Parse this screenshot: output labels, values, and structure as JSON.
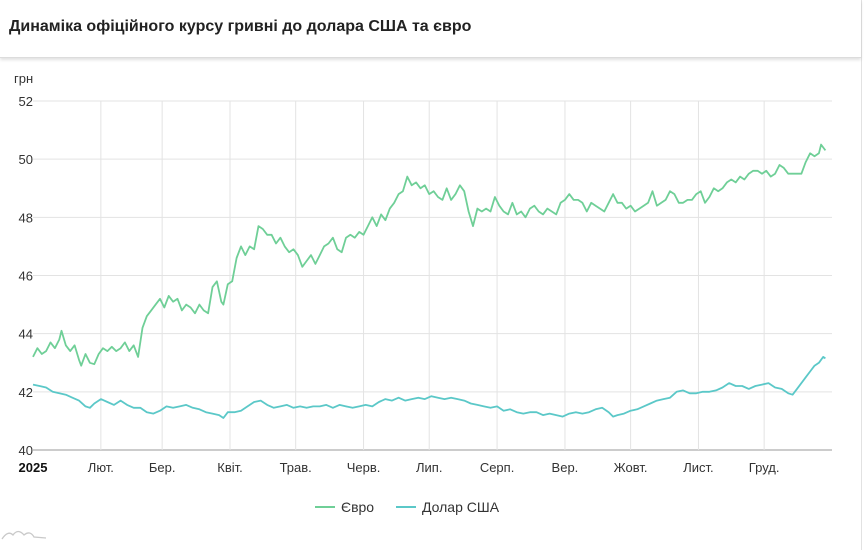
{
  "header": {
    "title": "Динаміка офіційного курсу гривні до долара США та євро"
  },
  "chart_data": {
    "type": "line",
    "ylabel": "грн",
    "ylim": [
      40,
      52
    ],
    "yticks": [
      40,
      42,
      44,
      46,
      48,
      50,
      52
    ],
    "xlim": [
      0,
      365
    ],
    "xticks": [
      {
        "label": "2025",
        "day": 0,
        "bold": true
      },
      {
        "label": "Лют.",
        "day": 31
      },
      {
        "label": "Бер.",
        "day": 59
      },
      {
        "label": "Квіт.",
        "day": 90
      },
      {
        "label": "Трав.",
        "day": 120
      },
      {
        "label": "Черв.",
        "day": 151
      },
      {
        "label": "Лип.",
        "day": 181
      },
      {
        "label": "Серп.",
        "day": 212
      },
      {
        "label": "Вер.",
        "day": 243
      },
      {
        "label": "Жовт.",
        "day": 273
      },
      {
        "label": "Лист.",
        "day": 304
      },
      {
        "label": "Груд.",
        "day": 334
      }
    ],
    "grid": true,
    "legend_position": "bottom",
    "series": [
      {
        "name": "Євро",
        "color": "#6fcf97",
        "points": [
          [
            0,
            43.2
          ],
          [
            2,
            43.5
          ],
          [
            4,
            43.3
          ],
          [
            6,
            43.4
          ],
          [
            8,
            43.7
          ],
          [
            10,
            43.5
          ],
          [
            12,
            43.8
          ],
          [
            13,
            44.1
          ],
          [
            15,
            43.6
          ],
          [
            17,
            43.4
          ],
          [
            19,
            43.6
          ],
          [
            21,
            43.1
          ],
          [
            22,
            42.9
          ],
          [
            24,
            43.3
          ],
          [
            26,
            43.0
          ],
          [
            28,
            42.95
          ],
          [
            30,
            43.3
          ],
          [
            32,
            43.5
          ],
          [
            34,
            43.4
          ],
          [
            36,
            43.55
          ],
          [
            38,
            43.4
          ],
          [
            40,
            43.5
          ],
          [
            42,
            43.7
          ],
          [
            44,
            43.4
          ],
          [
            46,
            43.6
          ],
          [
            48,
            43.2
          ],
          [
            50,
            44.2
          ],
          [
            52,
            44.6
          ],
          [
            54,
            44.8
          ],
          [
            56,
            45.0
          ],
          [
            58,
            45.2
          ],
          [
            60,
            44.9
          ],
          [
            62,
            45.3
          ],
          [
            64,
            45.1
          ],
          [
            66,
            45.2
          ],
          [
            68,
            44.8
          ],
          [
            70,
            45.0
          ],
          [
            72,
            44.9
          ],
          [
            74,
            44.7
          ],
          [
            76,
            45.0
          ],
          [
            78,
            44.8
          ],
          [
            80,
            44.7
          ],
          [
            82,
            45.6
          ],
          [
            84,
            45.8
          ],
          [
            86,
            45.1
          ],
          [
            87,
            45.0
          ],
          [
            89,
            45.7
          ],
          [
            91,
            45.8
          ],
          [
            93,
            46.6
          ],
          [
            95,
            47.0
          ],
          [
            97,
            46.7
          ],
          [
            99,
            47.0
          ],
          [
            101,
            46.9
          ],
          [
            103,
            47.7
          ],
          [
            105,
            47.6
          ],
          [
            107,
            47.4
          ],
          [
            109,
            47.4
          ],
          [
            111,
            47.1
          ],
          [
            113,
            47.3
          ],
          [
            115,
            47.0
          ],
          [
            117,
            46.8
          ],
          [
            119,
            46.9
          ],
          [
            121,
            46.7
          ],
          [
            123,
            46.3
          ],
          [
            125,
            46.5
          ],
          [
            127,
            46.7
          ],
          [
            129,
            46.4
          ],
          [
            131,
            46.7
          ],
          [
            133,
            47.0
          ],
          [
            135,
            47.1
          ],
          [
            137,
            47.3
          ],
          [
            139,
            46.9
          ],
          [
            141,
            46.8
          ],
          [
            143,
            47.3
          ],
          [
            145,
            47.4
          ],
          [
            147,
            47.3
          ],
          [
            149,
            47.5
          ],
          [
            151,
            47.4
          ],
          [
            153,
            47.7
          ],
          [
            155,
            48.0
          ],
          [
            157,
            47.7
          ],
          [
            159,
            48.1
          ],
          [
            161,
            47.9
          ],
          [
            163,
            48.3
          ],
          [
            165,
            48.5
          ],
          [
            167,
            48.8
          ],
          [
            169,
            48.9
          ],
          [
            171,
            49.4
          ],
          [
            173,
            49.1
          ],
          [
            175,
            49.2
          ],
          [
            177,
            49.0
          ],
          [
            179,
            49.1
          ],
          [
            181,
            48.8
          ],
          [
            183,
            48.9
          ],
          [
            185,
            48.7
          ],
          [
            187,
            48.6
          ],
          [
            189,
            49.0
          ],
          [
            191,
            48.6
          ],
          [
            193,
            48.8
          ],
          [
            195,
            49.1
          ],
          [
            197,
            48.9
          ],
          [
            199,
            48.2
          ],
          [
            201,
            47.7
          ],
          [
            203,
            48.3
          ],
          [
            205,
            48.2
          ],
          [
            207,
            48.3
          ],
          [
            209,
            48.2
          ],
          [
            211,
            48.7
          ],
          [
            213,
            48.4
          ],
          [
            215,
            48.2
          ],
          [
            217,
            48.1
          ],
          [
            219,
            48.5
          ],
          [
            221,
            48.1
          ],
          [
            223,
            48.2
          ],
          [
            225,
            48.0
          ],
          [
            227,
            48.3
          ],
          [
            229,
            48.4
          ],
          [
            231,
            48.2
          ],
          [
            233,
            48.1
          ],
          [
            235,
            48.3
          ],
          [
            237,
            48.2
          ],
          [
            239,
            48.1
          ],
          [
            241,
            48.5
          ],
          [
            243,
            48.6
          ],
          [
            245,
            48.8
          ],
          [
            247,
            48.6
          ],
          [
            249,
            48.6
          ],
          [
            251,
            48.5
          ],
          [
            253,
            48.2
          ],
          [
            255,
            48.5
          ],
          [
            257,
            48.4
          ],
          [
            259,
            48.3
          ],
          [
            261,
            48.2
          ],
          [
            263,
            48.5
          ],
          [
            265,
            48.8
          ],
          [
            267,
            48.5
          ],
          [
            269,
            48.5
          ],
          [
            271,
            48.3
          ],
          [
            273,
            48.4
          ],
          [
            275,
            48.2
          ],
          [
            277,
            48.3
          ],
          [
            279,
            48.4
          ],
          [
            281,
            48.5
          ],
          [
            283,
            48.9
          ],
          [
            285,
            48.4
          ],
          [
            287,
            48.5
          ],
          [
            289,
            48.6
          ],
          [
            291,
            48.9
          ],
          [
            293,
            48.8
          ],
          [
            295,
            48.5
          ],
          [
            297,
            48.5
          ],
          [
            299,
            48.6
          ],
          [
            301,
            48.6
          ],
          [
            303,
            48.8
          ],
          [
            305,
            48.9
          ],
          [
            307,
            48.5
          ],
          [
            309,
            48.7
          ],
          [
            311,
            49.0
          ],
          [
            313,
            48.9
          ],
          [
            315,
            49.0
          ],
          [
            317,
            49.2
          ],
          [
            319,
            49.3
          ],
          [
            321,
            49.2
          ],
          [
            323,
            49.4
          ],
          [
            325,
            49.3
          ],
          [
            327,
            49.5
          ],
          [
            329,
            49.6
          ],
          [
            331,
            49.6
          ],
          [
            333,
            49.5
          ],
          [
            335,
            49.6
          ],
          [
            337,
            49.4
          ],
          [
            339,
            49.5
          ],
          [
            341,
            49.8
          ],
          [
            343,
            49.7
          ],
          [
            345,
            49.5
          ],
          [
            347,
            49.5
          ],
          [
            349,
            49.5
          ],
          [
            351,
            49.5
          ],
          [
            353,
            49.9
          ],
          [
            355,
            50.2
          ],
          [
            357,
            50.1
          ],
          [
            359,
            50.2
          ],
          [
            360,
            50.5
          ],
          [
            362,
            50.3
          ]
        ]
      },
      {
        "name": "Долар США",
        "color": "#5bc8c8",
        "points": [
          [
            0,
            42.25
          ],
          [
            3,
            42.2
          ],
          [
            6,
            42.15
          ],
          [
            9,
            42.0
          ],
          [
            12,
            41.95
          ],
          [
            15,
            41.9
          ],
          [
            18,
            41.8
          ],
          [
            21,
            41.7
          ],
          [
            24,
            41.5
          ],
          [
            26,
            41.45
          ],
          [
            28,
            41.6
          ],
          [
            31,
            41.75
          ],
          [
            34,
            41.65
          ],
          [
            37,
            41.55
          ],
          [
            40,
            41.7
          ],
          [
            43,
            41.55
          ],
          [
            46,
            41.45
          ],
          [
            49,
            41.45
          ],
          [
            52,
            41.3
          ],
          [
            55,
            41.25
          ],
          [
            58,
            41.35
          ],
          [
            61,
            41.5
          ],
          [
            64,
            41.45
          ],
          [
            67,
            41.5
          ],
          [
            70,
            41.55
          ],
          [
            73,
            41.45
          ],
          [
            76,
            41.4
          ],
          [
            79,
            41.3
          ],
          [
            82,
            41.25
          ],
          [
            85,
            41.2
          ],
          [
            87,
            41.1
          ],
          [
            89,
            41.3
          ],
          [
            92,
            41.3
          ],
          [
            95,
            41.35
          ],
          [
            98,
            41.5
          ],
          [
            101,
            41.65
          ],
          [
            104,
            41.7
          ],
          [
            107,
            41.55
          ],
          [
            110,
            41.45
          ],
          [
            113,
            41.5
          ],
          [
            116,
            41.55
          ],
          [
            119,
            41.45
          ],
          [
            122,
            41.5
          ],
          [
            125,
            41.45
          ],
          [
            128,
            41.5
          ],
          [
            131,
            41.5
          ],
          [
            134,
            41.55
          ],
          [
            137,
            41.45
          ],
          [
            140,
            41.55
          ],
          [
            143,
            41.5
          ],
          [
            146,
            41.45
          ],
          [
            149,
            41.5
          ],
          [
            152,
            41.55
          ],
          [
            155,
            41.5
          ],
          [
            158,
            41.65
          ],
          [
            161,
            41.75
          ],
          [
            164,
            41.7
          ],
          [
            167,
            41.8
          ],
          [
            170,
            41.7
          ],
          [
            173,
            41.75
          ],
          [
            176,
            41.8
          ],
          [
            179,
            41.75
          ],
          [
            182,
            41.85
          ],
          [
            185,
            41.8
          ],
          [
            188,
            41.75
          ],
          [
            191,
            41.8
          ],
          [
            194,
            41.75
          ],
          [
            197,
            41.7
          ],
          [
            200,
            41.6
          ],
          [
            203,
            41.55
          ],
          [
            206,
            41.5
          ],
          [
            209,
            41.45
          ],
          [
            212,
            41.5
          ],
          [
            215,
            41.35
          ],
          [
            218,
            41.4
          ],
          [
            221,
            41.3
          ],
          [
            224,
            41.25
          ],
          [
            227,
            41.3
          ],
          [
            230,
            41.3
          ],
          [
            233,
            41.2
          ],
          [
            236,
            41.25
          ],
          [
            239,
            41.2
          ],
          [
            242,
            41.15
          ],
          [
            245,
            41.25
          ],
          [
            248,
            41.3
          ],
          [
            251,
            41.25
          ],
          [
            254,
            41.3
          ],
          [
            257,
            41.4
          ],
          [
            260,
            41.45
          ],
          [
            263,
            41.3
          ],
          [
            265,
            41.15
          ],
          [
            267,
            41.2
          ],
          [
            270,
            41.25
          ],
          [
            273,
            41.35
          ],
          [
            276,
            41.4
          ],
          [
            279,
            41.5
          ],
          [
            282,
            41.6
          ],
          [
            285,
            41.7
          ],
          [
            288,
            41.75
          ],
          [
            291,
            41.8
          ],
          [
            294,
            42.0
          ],
          [
            297,
            42.05
          ],
          [
            300,
            41.95
          ],
          [
            303,
            41.95
          ],
          [
            306,
            42.0
          ],
          [
            309,
            42.0
          ],
          [
            312,
            42.05
          ],
          [
            315,
            42.15
          ],
          [
            318,
            42.3
          ],
          [
            321,
            42.2
          ],
          [
            324,
            42.2
          ],
          [
            327,
            42.1
          ],
          [
            330,
            42.2
          ],
          [
            333,
            42.25
          ],
          [
            336,
            42.3
          ],
          [
            339,
            42.15
          ],
          [
            342,
            42.1
          ],
          [
            345,
            41.95
          ],
          [
            347,
            41.9
          ],
          [
            349,
            42.1
          ],
          [
            351,
            42.3
          ],
          [
            353,
            42.5
          ],
          [
            355,
            42.7
          ],
          [
            357,
            42.9
          ],
          [
            359,
            43.0
          ],
          [
            361,
            43.2
          ],
          [
            362,
            43.15
          ]
        ]
      }
    ]
  }
}
